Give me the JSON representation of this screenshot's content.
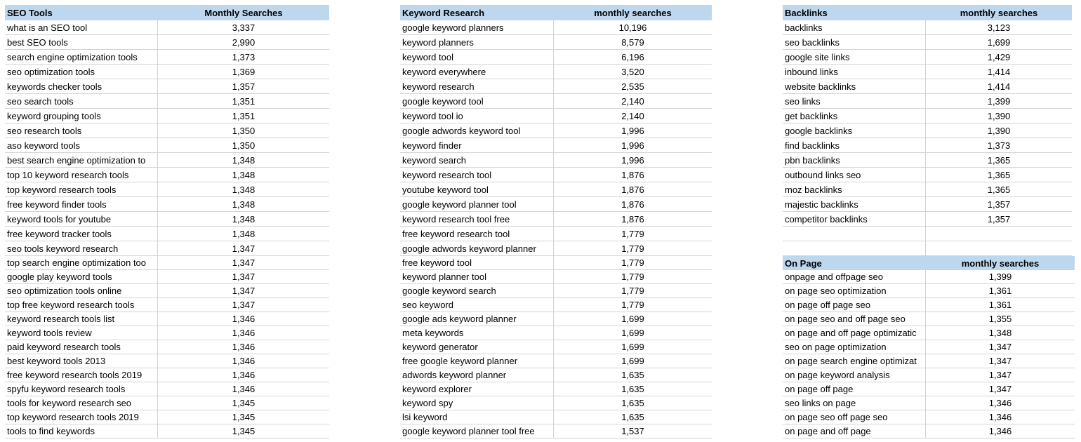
{
  "tables": [
    {
      "title": "SEO Tools",
      "value_header": "Monthly Searches",
      "rows": [
        [
          "what is an SEO tool",
          "3,337"
        ],
        [
          "best SEO tools",
          "2,990"
        ],
        [
          "search engine optimization tools",
          "1,373"
        ],
        [
          "seo optimization tools",
          "1,369"
        ],
        [
          "keywords checker tools",
          "1,357"
        ],
        [
          "seo search tools",
          "1,351"
        ],
        [
          "keyword grouping tools",
          "1,351"
        ],
        [
          "seo research tools",
          "1,350"
        ],
        [
          "aso keyword tools",
          "1,350"
        ],
        [
          "best search engine optimization to",
          "1,348"
        ],
        [
          "top 10 keyword research tools",
          "1,348"
        ],
        [
          "top keyword research tools",
          "1,348"
        ],
        [
          "free keyword finder tools",
          "1,348"
        ],
        [
          "keyword tools for youtube",
          "1,348"
        ],
        [
          "free keyword tracker tools",
          "1,348"
        ],
        [
          "seo tools keyword research",
          "1,347"
        ],
        [
          "top search engine optimization too",
          "1,347"
        ],
        [
          "google play keyword tools",
          "1,347"
        ],
        [
          "seo optimization tools online",
          "1,347"
        ],
        [
          "top free keyword research tools",
          "1,347"
        ],
        [
          "keyword research tools list",
          "1,346"
        ],
        [
          "keyword tools review",
          "1,346"
        ],
        [
          "paid keyword research tools",
          "1,346"
        ],
        [
          "best keyword tools 2013",
          "1,346"
        ],
        [
          "free keyword research tools 2019",
          "1,346"
        ],
        [
          "spyfu keyword research tools",
          "1,346"
        ],
        [
          "tools for keyword research seo",
          "1,345"
        ],
        [
          "top keyword research tools 2019",
          "1,345"
        ],
        [
          "tools to find keywords",
          "1,345"
        ]
      ]
    },
    {
      "title": "Keyword Research",
      "value_header": "monthly searches",
      "rows": [
        [
          "google keyword planners",
          "10,196"
        ],
        [
          "keyword planners",
          "8,579"
        ],
        [
          "keyword tool",
          "6,196"
        ],
        [
          "keyword everywhere",
          "3,520"
        ],
        [
          "keyword research",
          "2,535"
        ],
        [
          "google keyword tool",
          "2,140"
        ],
        [
          "keyword tool io",
          "2,140"
        ],
        [
          "google adwords keyword tool",
          "1,996"
        ],
        [
          "keyword finder",
          "1,996"
        ],
        [
          "keyword search",
          "1,996"
        ],
        [
          "keyword research tool",
          "1,876"
        ],
        [
          "youtube keyword tool",
          "1,876"
        ],
        [
          "google keyword planner tool",
          "1,876"
        ],
        [
          "keyword research tool free",
          "1,876"
        ],
        [
          "free keyword research tool",
          "1,779"
        ],
        [
          "google adwords keyword planner",
          "1,779"
        ],
        [
          "free keyword tool",
          "1,779"
        ],
        [
          "keyword planner tool",
          "1,779"
        ],
        [
          "google keyword search",
          "1,779"
        ],
        [
          "seo keyword",
          "1,779"
        ],
        [
          "google ads keyword planner",
          "1,699"
        ],
        [
          "meta keywords",
          "1,699"
        ],
        [
          "keyword generator",
          "1,699"
        ],
        [
          "free google keyword planner",
          "1,699"
        ],
        [
          "adwords keyword planner",
          "1,635"
        ],
        [
          "keyword explorer",
          "1,635"
        ],
        [
          "keyword spy",
          "1,635"
        ],
        [
          "lsi keyword",
          "1,635"
        ],
        [
          "google keyword planner tool free",
          "1,537"
        ]
      ]
    },
    {
      "title": "Backlinks",
      "value_header": "monthly searches",
      "rows": [
        [
          "backlinks",
          "3,123"
        ],
        [
          "seo backlinks",
          "1,699"
        ],
        [
          "google site links",
          "1,429"
        ],
        [
          "inbound links",
          "1,414"
        ],
        [
          "website backlinks",
          "1,414"
        ],
        [
          "seo links",
          "1,399"
        ],
        [
          "get backlinks",
          "1,390"
        ],
        [
          "google backlinks",
          "1,390"
        ],
        [
          "find backlinks",
          "1,373"
        ],
        [
          "pbn backlinks",
          "1,365"
        ],
        [
          "outbound links seo",
          "1,365"
        ],
        [
          "moz backlinks",
          "1,365"
        ],
        [
          "majestic backlinks",
          "1,357"
        ],
        [
          "competitor backlinks",
          "1,357"
        ]
      ]
    },
    {
      "title": "On Page",
      "value_header": "monthly searches",
      "rows": [
        [
          "onpage and offpage seo",
          "1,399"
        ],
        [
          "on page seo optimization",
          "1,361"
        ],
        [
          "on page off page seo",
          "1,361"
        ],
        [
          "on page seo and off page seo",
          "1,355"
        ],
        [
          "on page and off page optimizatic",
          "1,348"
        ],
        [
          "seo on page optimization",
          "1,347"
        ],
        [
          "on page search engine optimizat",
          "1,347"
        ],
        [
          "on page keyword analysis",
          "1,347"
        ],
        [
          "on page off page",
          "1,347"
        ],
        [
          "seo links on page",
          "1,346"
        ],
        [
          "on page seo off page seo",
          "1,346"
        ],
        [
          "on page and off page",
          "1,346"
        ]
      ]
    }
  ],
  "colors": {
    "header_bg": "#bdd7ee",
    "grid": "#d4d4d4"
  }
}
